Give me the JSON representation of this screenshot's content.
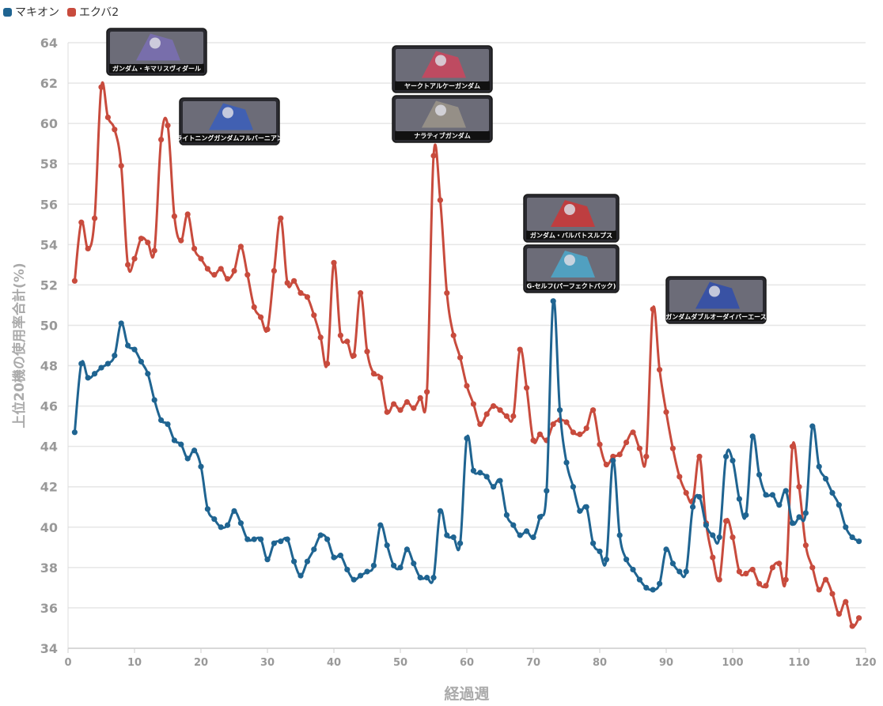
{
  "legend": {
    "items": [
      {
        "label": "マキオン",
        "color": "#1f6491"
      },
      {
        "label": "エクバ2",
        "color": "#c84b3d"
      }
    ]
  },
  "chart_data": {
    "type": "line",
    "xlabel": "経過週",
    "ylabel": "上位20機の使用率合計(%)",
    "xlim": [
      0,
      120
    ],
    "ylim": [
      34,
      64
    ],
    "xticks": [
      0,
      10,
      20,
      30,
      40,
      50,
      60,
      70,
      80,
      90,
      100,
      110,
      120
    ],
    "yticks": [
      34,
      36,
      38,
      40,
      42,
      44,
      46,
      48,
      50,
      52,
      54,
      56,
      58,
      60,
      62,
      64
    ],
    "grid": true,
    "legend_position": "top-left",
    "series": [
      {
        "name": "マキオン",
        "color": "#1f6491",
        "x": [
          1,
          2,
          3,
          4,
          5,
          6,
          7,
          8,
          9,
          10,
          11,
          12,
          13,
          14,
          15,
          16,
          17,
          18,
          19,
          20,
          21,
          22,
          23,
          24,
          25,
          26,
          27,
          28,
          29,
          30,
          31,
          32,
          33,
          34,
          35,
          36,
          37,
          38,
          39,
          40,
          41,
          42,
          43,
          44,
          45,
          46,
          47,
          48,
          49,
          50,
          51,
          52,
          53,
          54,
          55,
          56,
          57,
          58,
          59,
          60,
          61,
          62,
          63,
          64,
          65,
          66,
          67,
          68,
          69,
          70,
          71,
          72,
          73,
          74,
          75,
          76,
          77,
          78,
          79,
          80,
          81,
          82,
          83,
          84,
          85,
          86,
          87,
          88,
          89,
          90,
          91,
          92,
          93,
          94,
          95,
          96,
          97,
          98,
          99,
          100,
          101,
          102,
          103,
          104,
          105,
          106,
          107,
          108,
          109,
          110,
          111,
          112,
          113,
          114,
          115,
          116,
          117,
          118,
          119
        ],
        "values": [
          44.7,
          48.1,
          47.4,
          47.6,
          47.9,
          48.1,
          48.5,
          50.1,
          49.0,
          48.8,
          48.2,
          47.6,
          46.3,
          45.3,
          45.1,
          44.3,
          44.1,
          43.4,
          43.8,
          43.0,
          40.9,
          40.4,
          40.0,
          40.1,
          40.8,
          40.2,
          39.4,
          39.4,
          39.4,
          38.4,
          39.2,
          39.3,
          39.4,
          38.3,
          37.6,
          38.3,
          38.9,
          39.6,
          39.4,
          38.5,
          38.6,
          37.9,
          37.4,
          37.6,
          37.8,
          38.1,
          40.1,
          39.1,
          38.1,
          38.0,
          38.9,
          38.2,
          37.5,
          37.5,
          37.5,
          40.8,
          39.6,
          39.5,
          39.2,
          44.4,
          42.8,
          42.7,
          42.5,
          42.0,
          42.3,
          40.6,
          40.1,
          39.6,
          39.8,
          39.5,
          40.5,
          41.8,
          51.2,
          45.8,
          43.2,
          42.0,
          40.8,
          41.0,
          39.2,
          38.8,
          38.4,
          43.3,
          39.6,
          38.4,
          37.9,
          37.4,
          37.0,
          36.9,
          37.2,
          38.9,
          38.2,
          37.8,
          37.8,
          41.0,
          41.5,
          40.1,
          39.6,
          39.5,
          43.5,
          43.3,
          41.4,
          40.6,
          44.5,
          42.6,
          41.6,
          41.6,
          41.1,
          41.8,
          40.2,
          40.5,
          40.7,
          45.0,
          43.0,
          42.4,
          41.7,
          41.1,
          40.0,
          39.5,
          39.3
        ]
      },
      {
        "name": "エクバ2",
        "color": "#c84b3d",
        "x": [
          1,
          2,
          3,
          4,
          5,
          6,
          7,
          8,
          9,
          10,
          11,
          12,
          13,
          14,
          15,
          16,
          17,
          18,
          19,
          20,
          21,
          22,
          23,
          24,
          25,
          26,
          27,
          28,
          29,
          30,
          31,
          32,
          33,
          34,
          35,
          36,
          37,
          38,
          39,
          40,
          41,
          42,
          43,
          44,
          45,
          46,
          47,
          48,
          49,
          50,
          51,
          52,
          53,
          54,
          55,
          56,
          57,
          58,
          59,
          60,
          61,
          62,
          63,
          64,
          65,
          66,
          67,
          68,
          69,
          70,
          71,
          72,
          73,
          74,
          75,
          76,
          77,
          78,
          79,
          80,
          81,
          82,
          83,
          84,
          85,
          86,
          87,
          88,
          89,
          90,
          91,
          92,
          93,
          94,
          95,
          96,
          97,
          98,
          99,
          100,
          101,
          102,
          103,
          104,
          105,
          106,
          107,
          108,
          109,
          110,
          111,
          112,
          113,
          114,
          115,
          116,
          117,
          118,
          119
        ],
        "values": [
          52.2,
          55.1,
          53.8,
          55.3,
          61.8,
          60.3,
          59.7,
          57.9,
          53.0,
          53.3,
          54.3,
          54.1,
          53.7,
          59.2,
          59.9,
          55.4,
          54.2,
          55.5,
          53.8,
          53.3,
          52.8,
          52.5,
          52.8,
          52.3,
          52.7,
          53.9,
          52.5,
          50.9,
          50.4,
          49.8,
          52.7,
          55.3,
          52.1,
          52.2,
          51.6,
          51.4,
          50.5,
          49.4,
          48.1,
          53.1,
          49.5,
          49.2,
          48.5,
          51.6,
          48.7,
          47.6,
          47.4,
          45.7,
          46.1,
          45.8,
          46.2,
          45.9,
          46.4,
          46.7,
          58.4,
          56.2,
          51.6,
          49.5,
          48.4,
          47.0,
          46.1,
          45.1,
          45.6,
          46.0,
          45.8,
          45.5,
          45.5,
          48.8,
          46.9,
          44.3,
          44.6,
          44.3,
          45.1,
          45.3,
          45.2,
          44.7,
          44.6,
          44.9,
          45.8,
          44.1,
          43.1,
          43.5,
          43.6,
          44.2,
          44.7,
          43.9,
          43.5,
          50.8,
          47.8,
          45.7,
          43.9,
          42.5,
          41.7,
          41.3,
          43.5,
          40.2,
          38.5,
          37.4,
          40.3,
          39.5,
          37.8,
          37.7,
          37.9,
          37.2,
          37.1,
          38.0,
          38.2,
          37.4,
          44.0,
          42.0,
          39.1,
          38.0,
          36.9,
          37.4,
          36.7,
          35.7,
          36.3,
          35.1,
          35.5
        ]
      }
    ]
  },
  "thumbnails": [
    {
      "caption": "ガンダム・キマリスヴィダール",
      "icon": "mech-thumbnail",
      "accent": "#7a6fb0"
    },
    {
      "caption": "ライトニングガンダムフルバーニアン",
      "icon": "mech-thumbnail",
      "accent": "#3d5fb8"
    },
    {
      "caption": "ヤークトアルケーガンダム",
      "icon": "mech-thumbnail",
      "accent": "#c8485e"
    },
    {
      "caption": "ナラティブガンダム",
      "icon": "mech-thumbnail",
      "accent": "#9a9488"
    },
    {
      "caption": "ガンダム・バルバトスルプス",
      "icon": "mech-thumbnail",
      "accent": "#c83a3a"
    },
    {
      "caption": "G-セルフ(パーフェクトパック)",
      "icon": "mech-thumbnail",
      "accent": "#4fa6c8"
    },
    {
      "caption": "ガンダムダブルオーダイバーエース",
      "icon": "mech-thumbnail",
      "accent": "#3450a8"
    }
  ]
}
